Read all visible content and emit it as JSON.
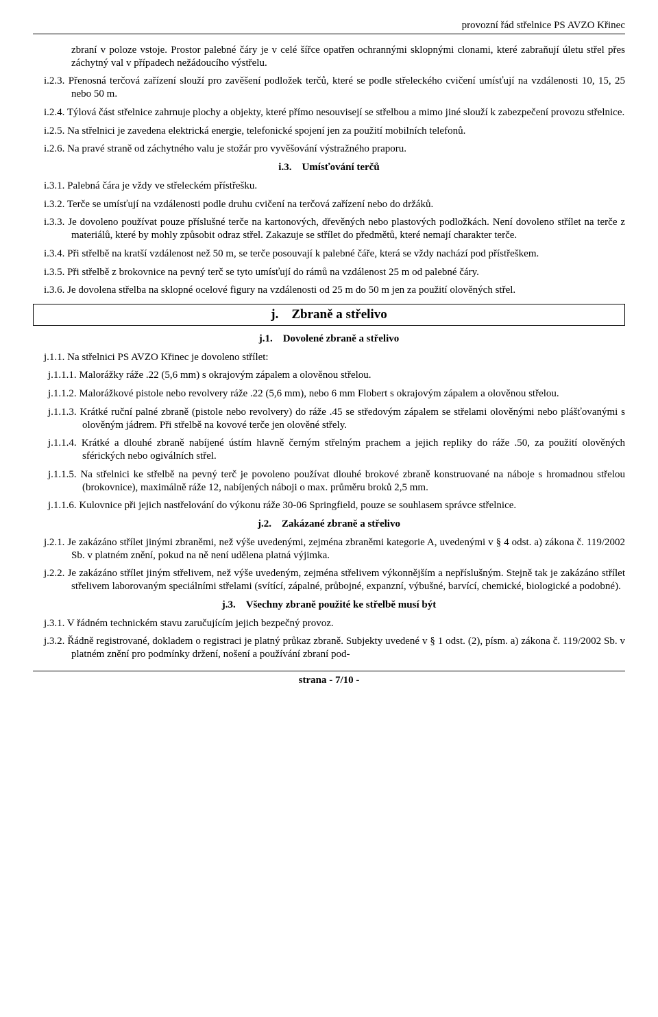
{
  "header": "provozní řád střelnice PS AVZO Křinec",
  "p_intro": "zbraní v poloze vstoje. Prostor palebné čáry je v celé šířce opatřen ochrannými sklopnými clonami, které zabraňují úletu střel přes záchytný val v případech nežádoucího výstřelu.",
  "i23": "i.2.3. Přenosná terčová zařízení slouží pro zavěšení podložek terčů, které se podle střeleckého cvičení umísťují na vzdálenosti 10, 15, 25 nebo 50 m.",
  "i24": "i.2.4. Týlová část střelnice zahrnuje plochy a objekty, které přímo nesouvisejí se střelbou a mimo jiné slouží k zabezpečení provozu střelnice.",
  "i25": "i.2.5. Na střelnici je zavedena elektrická energie, telefonické spojení jen za použití mobilních telefonů.",
  "i26": "i.2.6. Na pravé straně od záchytného valu je stožár pro vyvěšování výstražného praporu.",
  "i3_heading": "i.3. Umísťování terčů",
  "i31": "i.3.1. Palebná čára je vždy ve střeleckém přístřešku.",
  "i32": "i.3.2. Terče se umísťují na vzdálenosti podle druhu cvičení na terčová zařízení nebo do držáků.",
  "i33": "i.3.3. Je dovoleno používat pouze příslušné terče na kartonových, dřevěných nebo plastových podložkách. Není dovoleno střílet na terče z materiálů, které by mohly způsobit odraz střel. Zakazuje se střílet do předmětů, které nemají charakter terče.",
  "i34": "i.3.4. Při střelbě na kratší vzdálenost než 50 m, se terče posouvají k palebné čáře, která se vždy nachází pod přístřeškem.",
  "i35": "i.3.5. Při střelbě z brokovnice na pevný terč se tyto umísťují do rámů na vzdálenost 25 m od palebné čáry.",
  "i36": "i.3.6. Je dovolena střelba na sklopné ocelové figury na vzdálenosti od 25 m do 50 m jen za použití olověných střel.",
  "j_heading": "j. Zbraně a střelivo",
  "j1_heading": "j.1. Dovolené zbraně a střelivo",
  "j11": "j.1.1. Na střelnici PS AVZO Křinec je dovoleno střílet:",
  "j111": "j.1.1.1. Malorážky ráže .22 (5,6 mm) s okrajovým zápalem a olověnou střelou.",
  "j112": "j.1.1.2. Malorážkové pistole nebo revolvery ráže .22 (5,6 mm), nebo 6 mm Flobert s okrajovým zápalem a olověnou střelou.",
  "j113": "j.1.1.3. Krátké ruční palné zbraně (pistole nebo revolvery) do ráže .45 se středovým zápalem se střelami olověnými nebo plášťovanými s olověným jádrem. Při střelbě na kovové terče jen olověné střely.",
  "j114": "j.1.1.4. Krátké a dlouhé zbraně nabíjené ústím hlavně černým střelným prachem a jejich repliky do ráže .50, za použití olověných sférických nebo ogiválních střel.",
  "j115": "j.1.1.5. Na střelnici ke střelbě na pevný terč je povoleno používat dlouhé brokové zbraně konstruované na náboje s hromadnou střelou (brokovnice), maximálně ráže 12, nabíjených náboji o max. průměru broků 2,5 mm.",
  "j116": "j.1.1.6. Kulovnice při jejich nastřelování do výkonu ráže 30-06 Springfield, pouze se souhlasem správce střelnice.",
  "j2_heading": "j.2. Zakázané zbraně a střelivo",
  "j21": "j.2.1. Je zakázáno střílet jinými zbraněmi, než výše uvedenými, zejména zbraněmi kategorie A, uvedenými v § 4 odst. a) zákona č. 119/2002 Sb. v platném znění, pokud na ně není udělena platná výjimka.",
  "j22": "j.2.2. Je zakázáno střílet jiným střelivem, než výše uvedeným, zejména střelivem výkonnějším a nepříslušným. Stejně tak je zakázáno střílet střelivem laborovaným speciálními střelami (svítící, zápalné, průbojné, expanzní, výbušné, barvící, chemické, biologické a podobné).",
  "j3_heading": "j.3. Všechny zbraně použité ke střelbě musí být",
  "j31": "j.3.1. V řádném technickém stavu zaručujícím jejich bezpečný provoz.",
  "j32": "j.3.2. Řádně registrované, dokladem o registraci je platný průkaz zbraně. Subjekty uvedené v § 1 odst. (2), písm. a) zákona č. 119/2002 Sb. v platném znění pro podmínky držení, nošení a používání zbraní pod-",
  "footer": "strana - 7/10 -"
}
